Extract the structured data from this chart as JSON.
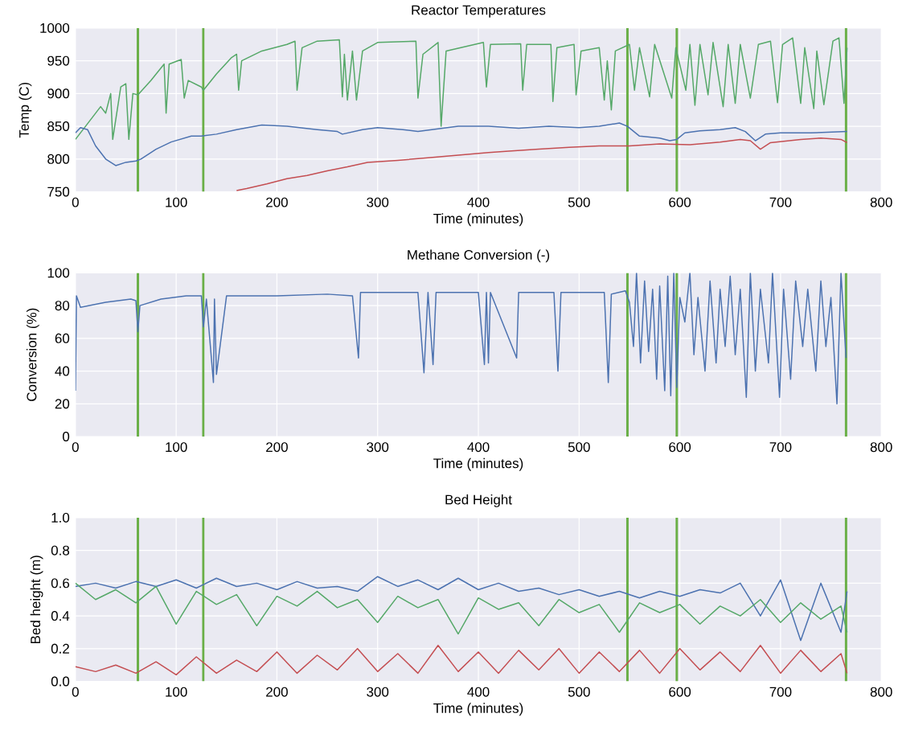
{
  "chart_data": [
    {
      "type": "line",
      "title": "Reactor Temperatures",
      "xlabel": "Time (minutes)",
      "ylabel": "Temp (C)",
      "grid": true,
      "xlim": [
        0,
        800
      ],
      "xticks": [
        0,
        100,
        200,
        300,
        400,
        500,
        600,
        700,
        800
      ],
      "ylim": [
        750,
        1000
      ],
      "yticks": [
        750,
        800,
        850,
        900,
        950,
        1000
      ],
      "series": [
        {
          "color": "#55a868",
          "x": [
            0,
            10,
            25,
            30,
            35,
            37,
            45,
            50,
            53,
            57,
            62,
            75,
            88,
            90,
            93,
            105,
            108,
            112,
            125,
            127,
            140,
            155,
            160,
            162,
            165,
            185,
            210,
            218,
            220,
            225,
            240,
            262,
            265,
            267,
            270,
            275,
            279,
            285,
            300,
            338,
            340,
            345,
            360,
            363,
            368,
            405,
            408,
            412,
            442,
            444,
            448,
            472,
            474,
            478,
            495,
            497,
            502,
            520,
            525,
            528,
            532,
            536,
            550,
            555,
            560,
            570,
            575,
            592,
            596,
            606,
            610,
            615,
            620,
            628,
            633,
            643,
            648,
            655,
            660,
            670,
            678,
            690,
            697,
            702,
            712,
            720,
            724,
            733,
            736,
            743,
            752,
            758,
            763,
            766
          ],
          "values": [
            830,
            850,
            880,
            870,
            900,
            830,
            910,
            915,
            830,
            900,
            898,
            920,
            945,
            870,
            945,
            952,
            893,
            920,
            910,
            905,
            930,
            955,
            960,
            905,
            950,
            965,
            975,
            980,
            905,
            970,
            980,
            982,
            895,
            960,
            890,
            965,
            890,
            965,
            978,
            980,
            893,
            960,
            978,
            850,
            965,
            978,
            910,
            975,
            976,
            905,
            975,
            975,
            888,
            970,
            975,
            898,
            965,
            970,
            890,
            950,
            875,
            965,
            975,
            905,
            970,
            895,
            975,
            893,
            970,
            905,
            975,
            882,
            975,
            898,
            978,
            880,
            975,
            885,
            975,
            893,
            975,
            980,
            886,
            975,
            985,
            885,
            970,
            877,
            965,
            883,
            980,
            985,
            885,
            970
          ]
        },
        {
          "color": "#4c72b0",
          "x": [
            0,
            5,
            12,
            20,
            30,
            40,
            50,
            60,
            65,
            80,
            95,
            115,
            125,
            140,
            160,
            185,
            210,
            240,
            260,
            265,
            285,
            300,
            325,
            340,
            360,
            380,
            410,
            440,
            470,
            500,
            520,
            540,
            548,
            560,
            580,
            590,
            597,
            605,
            620,
            640,
            655,
            665,
            675,
            685,
            700,
            730,
            766
          ],
          "values": [
            840,
            848,
            845,
            820,
            800,
            790,
            795,
            797,
            800,
            815,
            826,
            835,
            835,
            838,
            845,
            852,
            850,
            845,
            842,
            838,
            845,
            848,
            845,
            842,
            846,
            850,
            850,
            847,
            850,
            848,
            850,
            855,
            850,
            835,
            832,
            828,
            830,
            840,
            843,
            845,
            848,
            842,
            828,
            838,
            840,
            840,
            842
          ]
        },
        {
          "color": "#c44e52",
          "x": [
            160,
            170,
            190,
            210,
            230,
            250,
            270,
            290,
            320,
            350,
            380,
            410,
            430,
            460,
            490,
            520,
            550,
            580,
            610,
            640,
            660,
            670,
            680,
            690,
            720,
            740,
            760,
            766
          ],
          "values": [
            752,
            755,
            762,
            770,
            775,
            782,
            788,
            795,
            798,
            802,
            806,
            810,
            812,
            815,
            818,
            820,
            820,
            823,
            822,
            826,
            830,
            828,
            815,
            825,
            830,
            832,
            830,
            825
          ]
        }
      ],
      "ref_lines": [
        {
          "axis": "x",
          "value": 62,
          "color": "#6aaf47"
        },
        {
          "axis": "x",
          "value": 127,
          "color": "#6aaf47"
        },
        {
          "axis": "x",
          "value": 548,
          "color": "#6aaf47"
        },
        {
          "axis": "x",
          "value": 597,
          "color": "#6aaf47"
        },
        {
          "axis": "x",
          "value": 765,
          "color": "#6aaf47"
        }
      ]
    },
    {
      "type": "line",
      "title": "Methane Conversion (-)",
      "xlabel": "Time (minutes)",
      "ylabel": "Conversion (%)",
      "grid": true,
      "xlim": [
        0,
        800
      ],
      "xticks": [
        0,
        100,
        200,
        300,
        400,
        500,
        600,
        700,
        800
      ],
      "ylim": [
        0,
        100
      ],
      "yticks": [
        0,
        20,
        40,
        60,
        80,
        100
      ],
      "series": [
        {
          "color": "#4c72b0",
          "x": [
            0,
            1,
            5,
            30,
            55,
            60,
            62,
            64,
            85,
            110,
            125,
            127,
            130,
            137,
            138,
            140,
            150,
            200,
            250,
            275,
            281,
            283,
            340,
            346,
            350,
            355,
            358,
            400,
            406,
            408,
            410,
            412,
            438,
            440,
            475,
            479,
            482,
            525,
            529,
            532,
            546,
            550,
            554,
            557,
            561,
            565,
            569,
            573,
            577,
            580,
            585,
            588,
            591,
            594,
            597,
            600,
            605,
            610,
            614,
            618,
            625,
            630,
            636,
            640,
            645,
            650,
            655,
            660,
            666,
            670,
            675,
            680,
            688,
            692,
            699,
            703,
            710,
            715,
            722,
            727,
            735,
            740,
            745,
            750,
            756,
            760,
            765
          ],
          "values": [
            28,
            86,
            79,
            82,
            84,
            83,
            64,
            80,
            84,
            86,
            86,
            67,
            84,
            33,
            84,
            38,
            86,
            86,
            87,
            86,
            48,
            88,
            88,
            39,
            88,
            44,
            88,
            88,
            44,
            88,
            45,
            88,
            48,
            88,
            88,
            40,
            88,
            88,
            33,
            87,
            89,
            82,
            55,
            100,
            45,
            95,
            52,
            90,
            35,
            92,
            28,
            98,
            25,
            100,
            30,
            85,
            70,
            100,
            50,
            85,
            40,
            95,
            45,
            90,
            55,
            98,
            50,
            90,
            24,
            100,
            40,
            90,
            45,
            100,
            24,
            90,
            35,
            95,
            55,
            90,
            40,
            95,
            55,
            85,
            20,
            100,
            48
          ]
        }
      ],
      "ref_lines": [
        {
          "axis": "x",
          "value": 62,
          "color": "#6aaf47"
        },
        {
          "axis": "x",
          "value": 127,
          "color": "#6aaf47"
        },
        {
          "axis": "x",
          "value": 548,
          "color": "#6aaf47"
        },
        {
          "axis": "x",
          "value": 597,
          "color": "#6aaf47"
        },
        {
          "axis": "x",
          "value": 765,
          "color": "#6aaf47"
        }
      ]
    },
    {
      "type": "line",
      "title": "Bed Height",
      "xlabel": "Time (minutes)",
      "ylabel": "Bed height (m)",
      "grid": true,
      "xlim": [
        0,
        800
      ],
      "xticks": [
        0,
        100,
        200,
        300,
        400,
        500,
        600,
        700,
        800
      ],
      "ylim": [
        0,
        1
      ],
      "yticks": [
        {
          "value": 0,
          "label": "0.0"
        },
        {
          "value": 0.2,
          "label": "0.2"
        },
        {
          "value": 0.4,
          "label": "0.4"
        },
        {
          "value": 0.6,
          "label": "0.6"
        },
        {
          "value": 0.8,
          "label": "0.8"
        },
        {
          "value": 1,
          "label": "1.0"
        }
      ],
      "series": [
        {
          "color": "#4c72b0",
          "x": [
            0,
            20,
            40,
            60,
            80,
            100,
            120,
            140,
            160,
            180,
            200,
            220,
            240,
            260,
            280,
            300,
            320,
            340,
            360,
            380,
            400,
            420,
            440,
            460,
            480,
            500,
            520,
            540,
            560,
            580,
            600,
            620,
            640,
            660,
            680,
            700,
            720,
            740,
            760,
            766
          ],
          "values": [
            0.58,
            0.6,
            0.57,
            0.61,
            0.58,
            0.62,
            0.57,
            0.63,
            0.58,
            0.6,
            0.56,
            0.61,
            0.57,
            0.58,
            0.55,
            0.64,
            0.58,
            0.62,
            0.56,
            0.63,
            0.56,
            0.6,
            0.55,
            0.57,
            0.53,
            0.56,
            0.52,
            0.55,
            0.51,
            0.55,
            0.52,
            0.56,
            0.54,
            0.6,
            0.4,
            0.62,
            0.25,
            0.6,
            0.3,
            0.55
          ]
        },
        {
          "color": "#55a868",
          "x": [
            0,
            20,
            40,
            60,
            80,
            100,
            120,
            140,
            160,
            180,
            200,
            220,
            240,
            260,
            280,
            300,
            320,
            340,
            360,
            380,
            400,
            420,
            440,
            460,
            480,
            500,
            520,
            540,
            560,
            580,
            600,
            620,
            640,
            660,
            680,
            700,
            720,
            740,
            760,
            766
          ],
          "values": [
            0.6,
            0.5,
            0.56,
            0.48,
            0.58,
            0.35,
            0.55,
            0.47,
            0.53,
            0.34,
            0.52,
            0.46,
            0.55,
            0.45,
            0.5,
            0.36,
            0.52,
            0.45,
            0.5,
            0.29,
            0.51,
            0.44,
            0.48,
            0.34,
            0.5,
            0.42,
            0.47,
            0.3,
            0.48,
            0.42,
            0.47,
            0.35,
            0.46,
            0.4,
            0.5,
            0.36,
            0.48,
            0.38,
            0.46,
            0.3
          ]
        },
        {
          "color": "#c44e52",
          "x": [
            0,
            20,
            40,
            60,
            80,
            100,
            120,
            140,
            160,
            180,
            200,
            220,
            240,
            260,
            280,
            300,
            320,
            340,
            360,
            380,
            400,
            420,
            440,
            460,
            480,
            500,
            520,
            540,
            560,
            580,
            600,
            620,
            640,
            660,
            680,
            700,
            720,
            740,
            760,
            766
          ],
          "values": [
            0.09,
            0.06,
            0.1,
            0.05,
            0.12,
            0.04,
            0.15,
            0.05,
            0.13,
            0.06,
            0.18,
            0.05,
            0.16,
            0.07,
            0.2,
            0.06,
            0.17,
            0.05,
            0.22,
            0.06,
            0.18,
            0.05,
            0.19,
            0.07,
            0.2,
            0.05,
            0.18,
            0.06,
            0.19,
            0.05,
            0.2,
            0.07,
            0.18,
            0.06,
            0.22,
            0.05,
            0.19,
            0.06,
            0.17,
            0.05
          ]
        }
      ],
      "ref_lines": [
        {
          "axis": "x",
          "value": 62,
          "color": "#6aaf47"
        },
        {
          "axis": "x",
          "value": 127,
          "color": "#6aaf47"
        },
        {
          "axis": "x",
          "value": 548,
          "color": "#6aaf47"
        },
        {
          "axis": "x",
          "value": 597,
          "color": "#6aaf47"
        },
        {
          "axis": "x",
          "value": 765,
          "color": "#6aaf47"
        }
      ]
    }
  ]
}
